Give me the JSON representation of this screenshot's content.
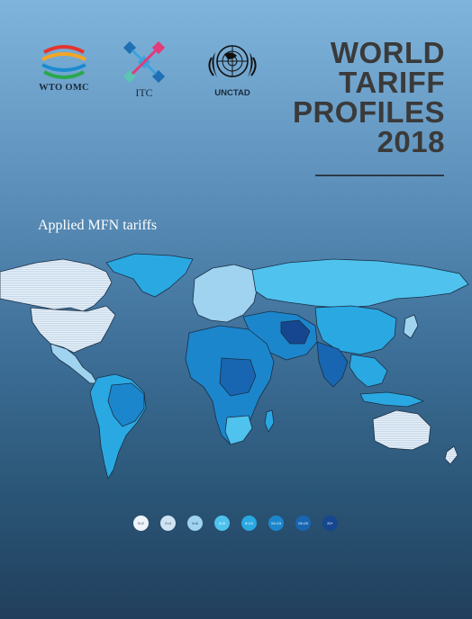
{
  "logos": {
    "wto": {
      "label": "WTO OMC"
    },
    "itc": {
      "label": "ITC"
    },
    "unctad": {
      "label": "UNCTAD"
    }
  },
  "title": {
    "lines": [
      "WORLD",
      "TARIFF",
      "PROFILES",
      "2018"
    ]
  },
  "subtitle": "Applied MFN tariffs",
  "legend": {
    "items": [
      {
        "label": "0<2",
        "color": "#eef4fa"
      },
      {
        "label": "2<4",
        "color": "#cfe3f3"
      },
      {
        "label": "4<6",
        "color": "#9fd3f0"
      },
      {
        "label": "6<8",
        "color": "#4fc2ee"
      },
      {
        "label": "8<10",
        "color": "#2aa8e2"
      },
      {
        "label": "10<15",
        "color": "#1c86cc"
      },
      {
        "label": "15<20",
        "color": "#1866b2"
      },
      {
        "label": "20+",
        "color": "#16468f"
      }
    ]
  },
  "colors": {
    "background_top": "#7fb4dc",
    "background_bottom": "#213f5c",
    "title": "#3a3a3a",
    "subtitle": "#ffffff",
    "wto_ribbons": [
      "#e5342f",
      "#f5a623",
      "#1d8bd0",
      "#2aa84a"
    ],
    "itc_marks": [
      "#e23a7a",
      "#3aa3dd",
      "#5bc4b4",
      "#1f6fb5"
    ]
  }
}
